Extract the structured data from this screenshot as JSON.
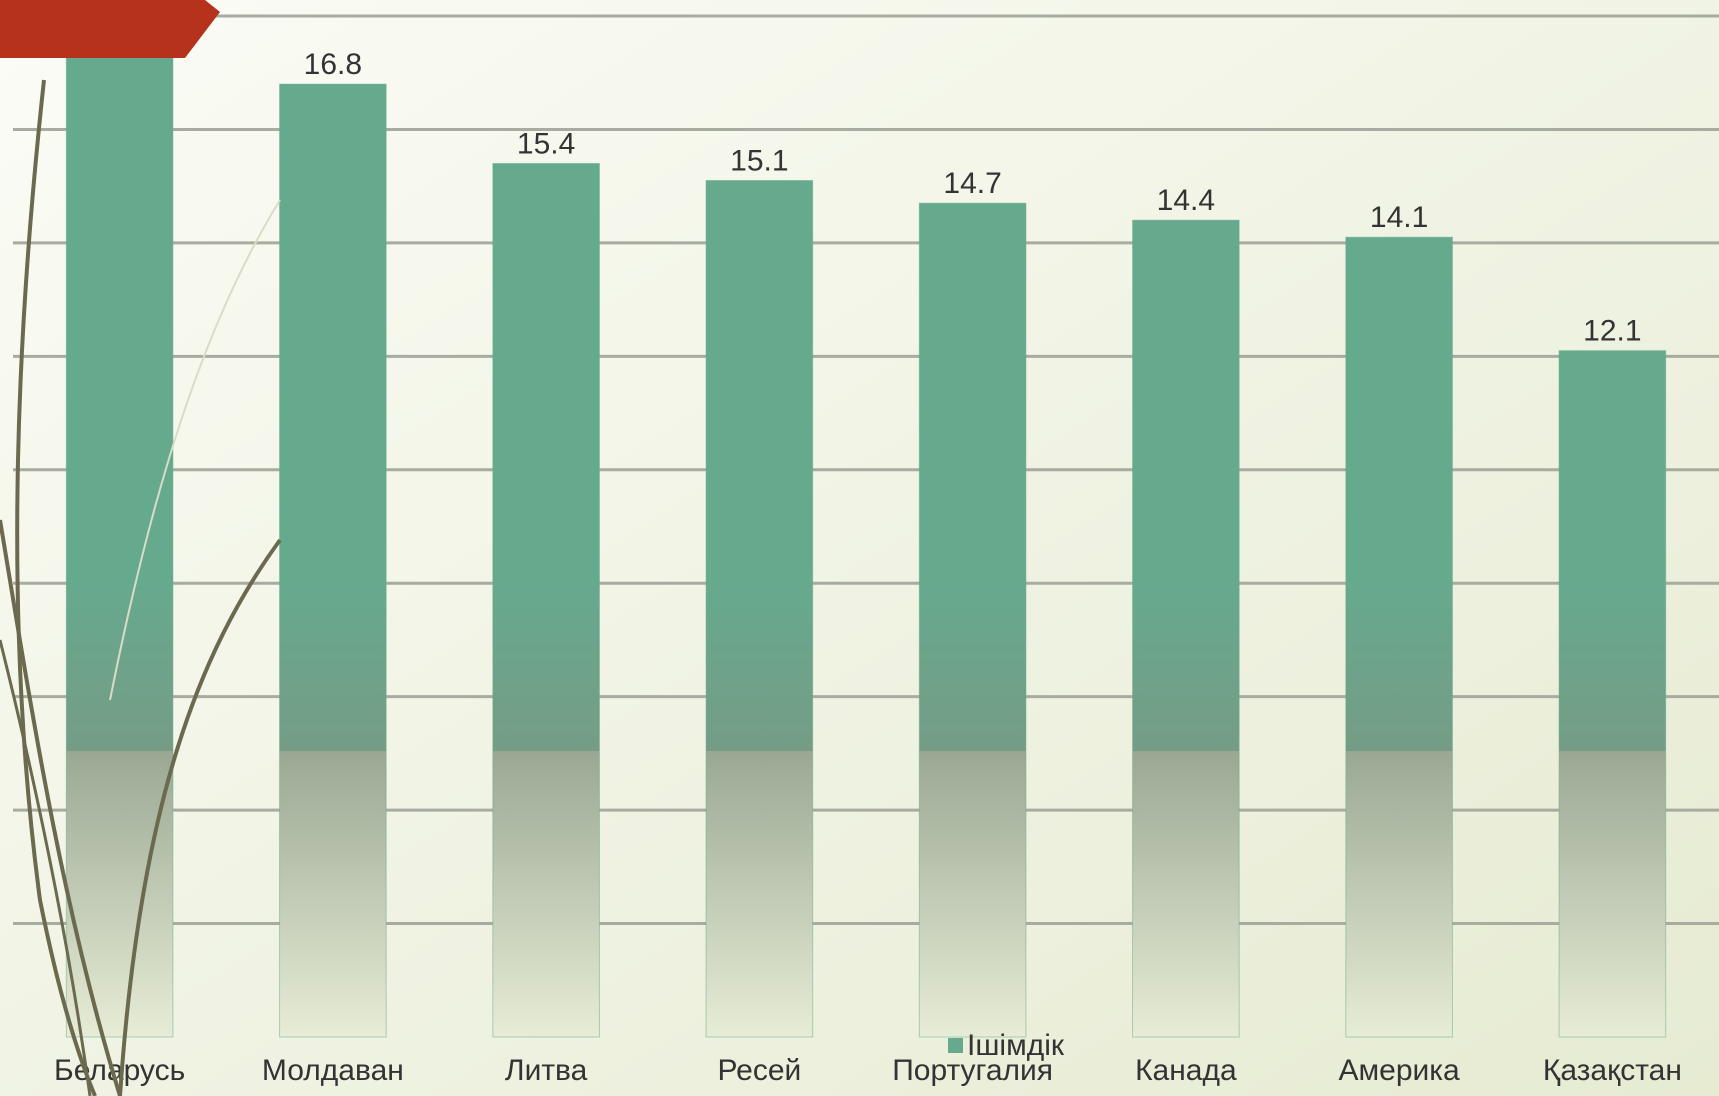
{
  "chart_data": {
    "type": "bar",
    "categories": [
      "Беларусь",
      "Молдаван",
      "Литва",
      "Ресей",
      "Португалия",
      "Канада",
      "Америка",
      "Қазақстан"
    ],
    "series": [
      {
        "name": "Ішімдік",
        "color": "#66aa8e",
        "values": [
          17.5,
          16.8,
          15.4,
          15.1,
          14.7,
          14.4,
          14.1,
          12.1
        ]
      }
    ],
    "ylim": [
      0,
      18
    ],
    "yticks": [
      2,
      4,
      6,
      8,
      10,
      12,
      14,
      16,
      18
    ],
    "grid": true
  }
}
